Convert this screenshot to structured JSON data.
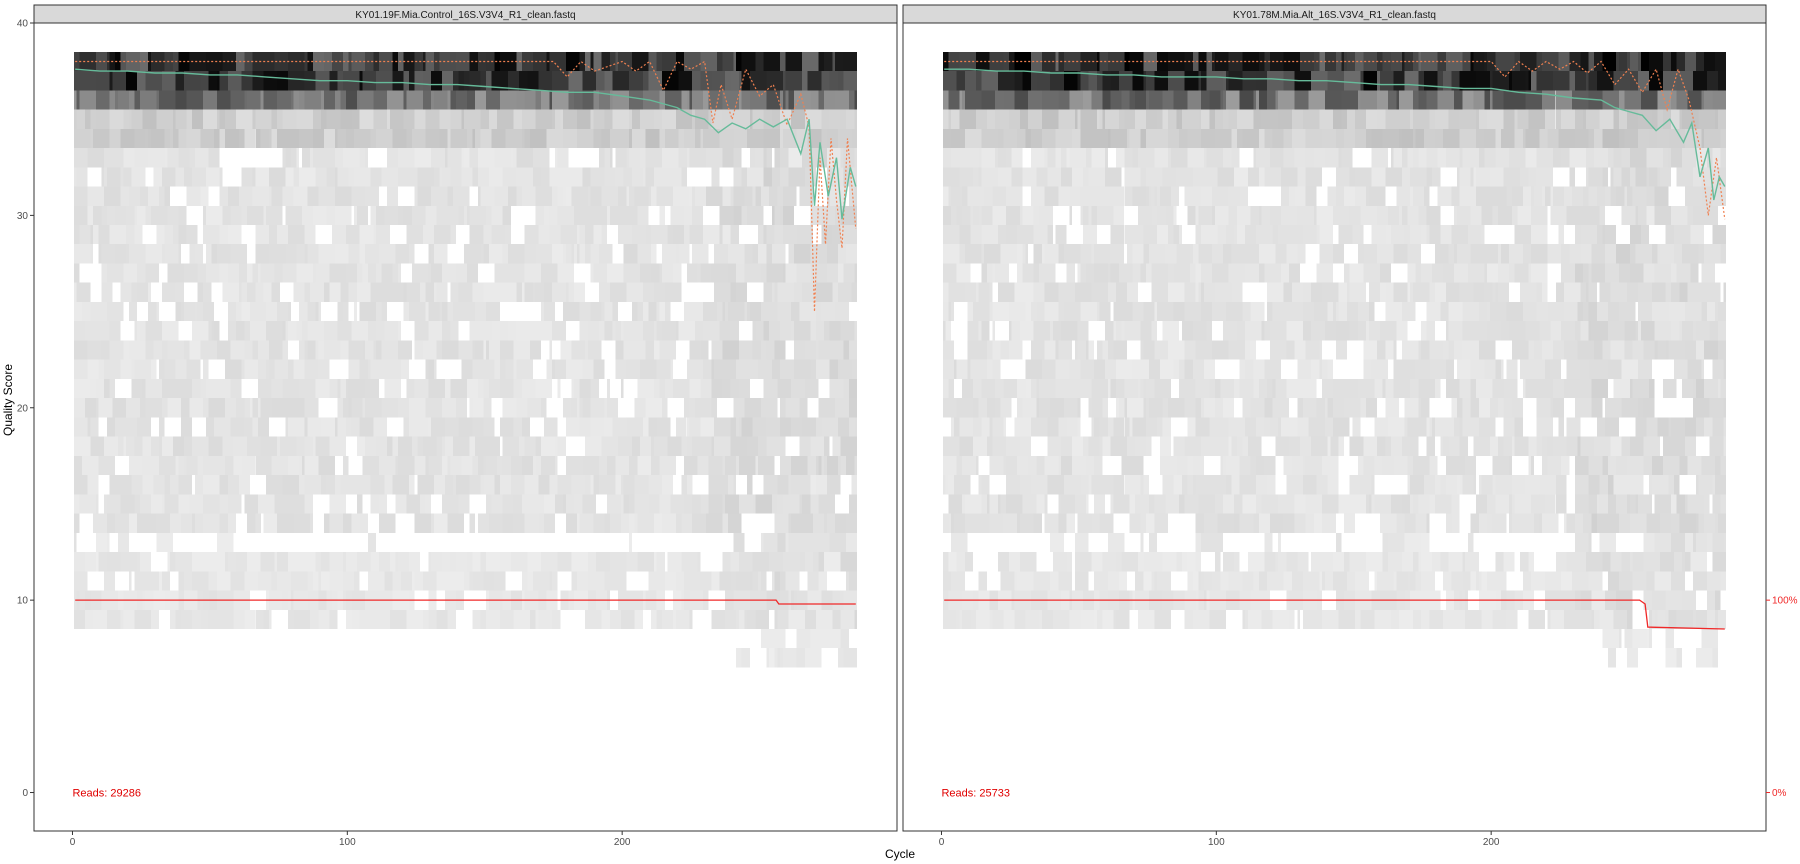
{
  "figure": {
    "ylabel": "Quality Score",
    "xlabel": "Cycle",
    "right_axis_ticks": [
      "100%",
      "0%"
    ]
  },
  "colors": {
    "mean_quality": "#66BB9A",
    "quartile": "#F08050",
    "cumulative_reads": "#F02828",
    "reads_label": "#E00000",
    "heatmap_dark": "#000000",
    "heatmap_light": "#F0F0F0",
    "strip_background": "#D9D9D9",
    "panel_border": "#333333"
  },
  "chart_data": [
    {
      "type": "heatmap",
      "title": "KY01.19F.Mia.Control_16S.V3V4_R1_clean.fastq",
      "xlim": [
        -14,
        300
      ],
      "ylim": [
        -2,
        40
      ],
      "x_ticks": [
        0,
        100,
        200
      ],
      "y_ticks": [
        0,
        10,
        20,
        30,
        40
      ],
      "max_cycle": 285,
      "reads_text": "Reads:  29286",
      "mean_quality": {
        "x": [
          1,
          10,
          20,
          30,
          40,
          50,
          60,
          70,
          80,
          90,
          100,
          110,
          120,
          130,
          140,
          150,
          160,
          170,
          180,
          190,
          200,
          210,
          220,
          225,
          230,
          235,
          240,
          245,
          250,
          255,
          260,
          265,
          268,
          270,
          272,
          275,
          278,
          280,
          283,
          285
        ],
        "y": [
          37.6,
          37.5,
          37.5,
          37.4,
          37.4,
          37.3,
          37.3,
          37.2,
          37.1,
          37.0,
          37.0,
          36.9,
          36.9,
          36.8,
          36.8,
          36.7,
          36.6,
          36.5,
          36.4,
          36.4,
          36.2,
          36.0,
          35.6,
          35.2,
          35.0,
          34.3,
          34.8,
          34.5,
          35.0,
          34.6,
          35.0,
          33.2,
          35.0,
          30.5,
          33.8,
          31.0,
          33.0,
          29.8,
          32.5,
          31.5
        ]
      },
      "quartile_line": {
        "x": [
          1,
          50,
          100,
          150,
          175,
          180,
          185,
          190,
          200,
          205,
          210,
          215,
          220,
          225,
          230,
          233,
          236,
          240,
          245,
          250,
          255,
          260,
          265,
          268,
          270,
          272,
          274,
          276,
          278,
          280,
          282,
          285
        ],
        "y": [
          38,
          38,
          38,
          38,
          38,
          37.2,
          38,
          37.5,
          38,
          37.5,
          38,
          36.5,
          38,
          37.6,
          38,
          34.8,
          36.8,
          35,
          37.6,
          36.2,
          36.8,
          34.7,
          36.3,
          34.6,
          25,
          33,
          28.5,
          34,
          30.8,
          28.3,
          34,
          29.3
        ]
      },
      "cumulative_reads": {
        "x": [
          1,
          256,
          257,
          285
        ],
        "y": [
          10,
          10,
          9.8,
          9.8
        ]
      }
    },
    {
      "type": "heatmap",
      "title": "KY01.78M.Mia.Alt_16S.V3V4_R1_clean.fastq",
      "xlim": [
        -14,
        300
      ],
      "ylim": [
        -2,
        40
      ],
      "x_ticks": [
        0,
        100,
        200
      ],
      "y_ticks": [
        0,
        10,
        20,
        30,
        40
      ],
      "max_cycle": 285,
      "reads_text": "Reads:  25733",
      "mean_quality": {
        "x": [
          1,
          10,
          20,
          30,
          40,
          50,
          60,
          70,
          80,
          90,
          100,
          110,
          120,
          130,
          140,
          150,
          160,
          170,
          180,
          190,
          200,
          210,
          220,
          230,
          240,
          245,
          250,
          255,
          260,
          265,
          270,
          273,
          276,
          279,
          281,
          283,
          285
        ],
        "y": [
          37.6,
          37.6,
          37.5,
          37.5,
          37.4,
          37.4,
          37.3,
          37.3,
          37.2,
          37.2,
          37.2,
          37.1,
          37.1,
          37.0,
          37.0,
          36.9,
          36.8,
          36.8,
          36.7,
          36.6,
          36.6,
          36.4,
          36.3,
          36.1,
          36.0,
          35.6,
          35.4,
          35.2,
          34.4,
          35.0,
          33.8,
          34.8,
          32.0,
          33.5,
          30.8,
          32.0,
          31.5
        ]
      },
      "quartile_line": {
        "x": [
          1,
          100,
          200,
          205,
          210,
          215,
          220,
          225,
          230,
          235,
          240,
          245,
          250,
          255,
          260,
          264,
          268,
          272,
          276,
          279,
          282,
          285
        ],
        "y": [
          38,
          38,
          38,
          37.2,
          38,
          37.5,
          38,
          37.6,
          38,
          37.4,
          38,
          36.8,
          37.6,
          36.4,
          37.6,
          35.5,
          37.6,
          36,
          33.5,
          30,
          33,
          29.8
        ]
      },
      "cumulative_reads": {
        "x": [
          1,
          254,
          256,
          257,
          285
        ],
        "y": [
          10,
          10,
          9.8,
          8.6,
          8.5
        ]
      }
    }
  ]
}
